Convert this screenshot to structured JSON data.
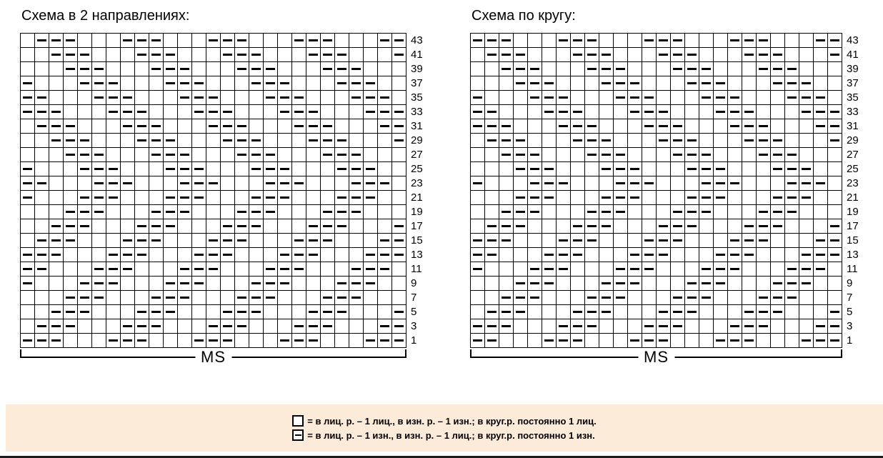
{
  "left_chart": {
    "title": "Схема в 2 направлениях:",
    "ms_label": "MS",
    "columns": 27,
    "rows": [
      ".---...---...---...---...--",
      "..---...---...---...---...-",
      "...---...---...---...---...",
      "-...---...---...---...---..",
      "--...---...---...---...---.",
      "---...---...---...---...---",
      ".---...---...---...---...--",
      "..---...---...---...---...-",
      "...---...---...---...---...",
      "-...---...---...---...---..",
      "--...---...---...---...---.",
      "-...---...---...---...---..",
      "...---...---...---...---...",
      "..---...---...---...---...-",
      ".---...---...---...---...--",
      "---...---...---...---...---",
      "--...---...---...---...---.",
      "-...---...---...---...---..",
      "...---...---...---...---...",
      "..---...---...---...---...-",
      ".---...---...---...---...--",
      "---...---...---...---...---"
    ]
  },
  "right_chart": {
    "title": "Схема по кругу:",
    "ms_label": "MS",
    "columns": 26,
    "rows": [
      "---...---...---...---...--",
      ".---...---...---...---...-",
      "..---...---...---...---...",
      "...---...---...---...---..",
      "-...---...---...---...---.",
      "--...---...---...---...---",
      "---...---...---...---...--",
      ".---...---...---...---...-",
      "..---...---...---...---...",
      "...---...---...---...---..",
      "-...---...---...---...---.",
      "...---...---...---...---..",
      "..---...---...---...---...",
      ".---...---...---...---...-",
      "---...---...---...---...--",
      "--...---...---...---...---",
      "-...---...---...---...---.",
      "...---...---...---...---..",
      "..---...---...---...---...",
      ".---...---...---...---...-",
      "---...---...---...---...--",
      "--...---...---...---...---"
    ]
  },
  "row_numbers": [
    43,
    41,
    39,
    37,
    35,
    33,
    31,
    29,
    27,
    25,
    23,
    21,
    19,
    17,
    15,
    13,
    11,
    9,
    7,
    5,
    3,
    1
  ],
  "legend": {
    "items": [
      {
        "symbol": "knit-square",
        "text": "= в лиц. р. – 1 лиц., в изн. р. – 1 изн.; в круг.р. постоянно 1 лиц."
      },
      {
        "symbol": "purl-square",
        "text": "= в лиц. р. – 1 изн., в изн. р. – 1 лиц.; в круг.р. постоянно 1 изн."
      }
    ]
  },
  "colors": {
    "grid_line": "#000000",
    "symbol": "#000000",
    "legend_background": "#fcebd9",
    "background": "#ffffff"
  }
}
